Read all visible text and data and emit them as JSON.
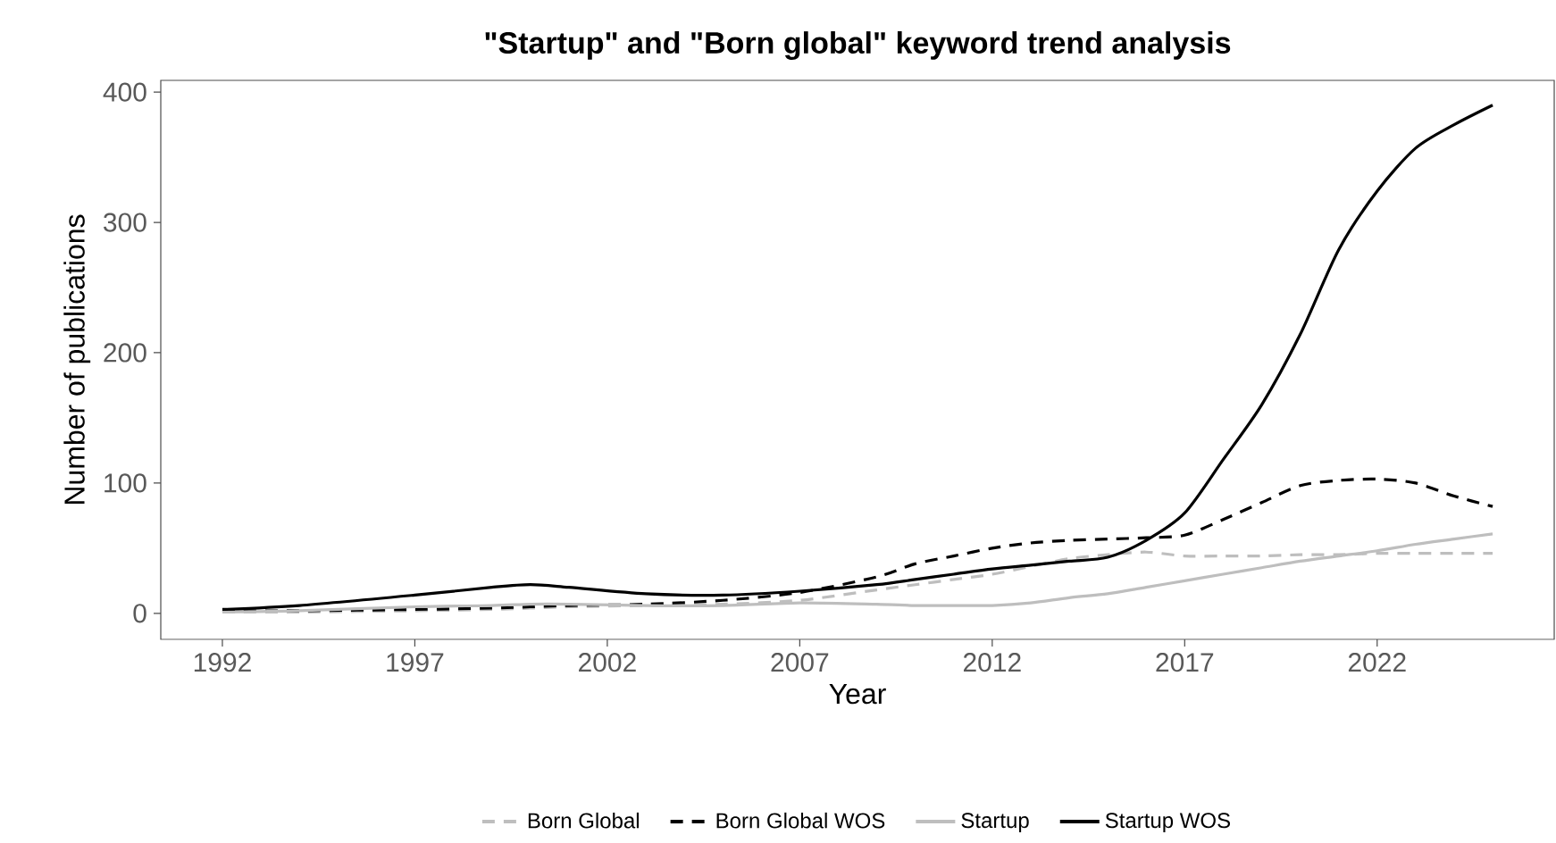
{
  "chart_data": {
    "type": "line",
    "title": "\"Startup\" and \"Born global\" keyword trend analysis",
    "xlabel": "Year",
    "ylabel": "Number of publications",
    "xlim": [
      1990.4,
      2026.6
    ],
    "xticks": [
      1992,
      1997,
      2002,
      2007,
      2012,
      2017,
      2022
    ],
    "ylim": [
      -20,
      409
    ],
    "yticks": [
      0,
      100,
      200,
      300,
      400
    ],
    "grid": false,
    "legend": "bottom",
    "x": [
      1992,
      1994,
      1997,
      1999,
      2000,
      2001,
      2003,
      2005,
      2007,
      2009,
      2010,
      2011,
      2012,
      2013,
      2014,
      2015,
      2016,
      2017,
      2018,
      2019,
      2020,
      2021,
      2022,
      2023,
      2024,
      2025
    ],
    "series": [
      {
        "name": "Born Global",
        "color": "#bebebe",
        "line_style": "dashed",
        "values": [
          1,
          1,
          2,
          3,
          4,
          5,
          6,
          7,
          10,
          18,
          22,
          26,
          30,
          36,
          42,
          45,
          47,
          44,
          44,
          44,
          45,
          45,
          46,
          46,
          46,
          46
        ]
      },
      {
        "name": "Born Global WOS",
        "color": "#000000",
        "line_style": "dashed",
        "values": [
          2,
          2,
          3,
          4,
          5,
          6,
          7,
          10,
          16,
          28,
          38,
          44,
          50,
          54,
          56,
          57,
          58,
          60,
          72,
          85,
          98,
          102,
          103,
          100,
          90,
          82
        ]
      },
      {
        "name": "Startup",
        "color": "#bebebe",
        "line_style": "solid",
        "values": [
          1,
          2,
          5,
          6,
          7,
          7,
          6,
          6,
          8,
          7,
          6,
          6,
          6,
          8,
          12,
          15,
          20,
          25,
          30,
          35,
          40,
          44,
          48,
          53,
          57,
          61
        ]
      },
      {
        "name": "Startup WOS",
        "color": "#000000",
        "line_style": "solid",
        "values": [
          3,
          6,
          14,
          20,
          22,
          20,
          15,
          14,
          17,
          22,
          26,
          30,
          34,
          37,
          40,
          43,
          56,
          77,
          118,
          160,
          214,
          279,
          324,
          357,
          375,
          390
        ]
      }
    ]
  }
}
